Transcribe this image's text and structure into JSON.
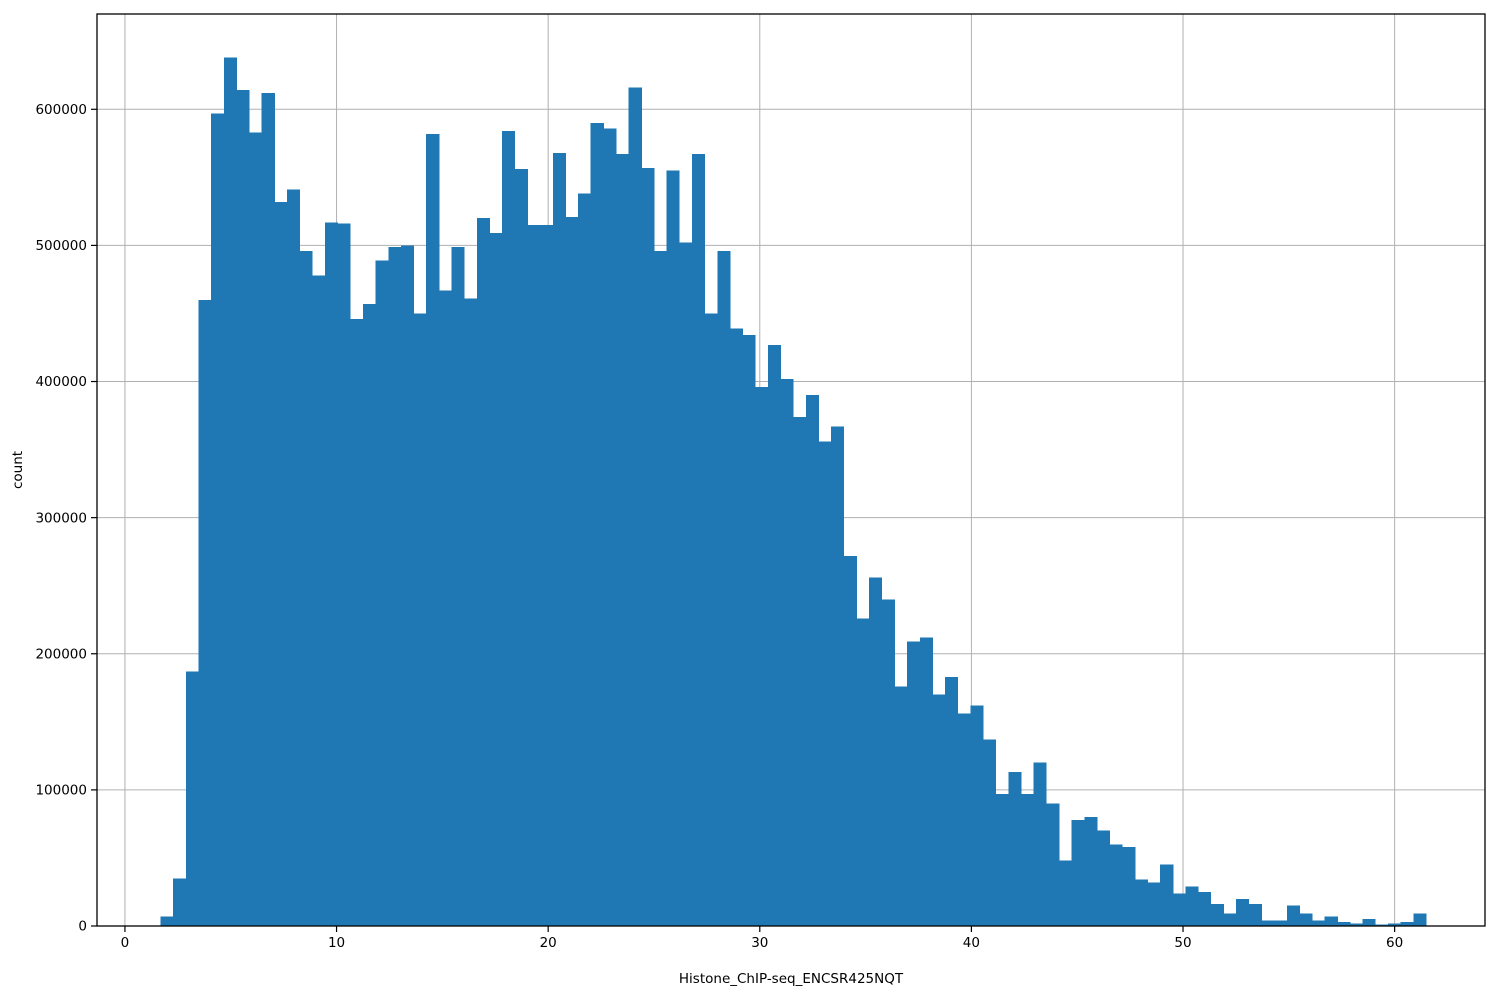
{
  "figure": {
    "background": "#ffffff"
  },
  "chart_data": {
    "type": "bar",
    "subtype": "histogram",
    "title": "",
    "xlabel": "Histone_ChIP-seq_ENCSR425NQT",
    "ylabel": "count",
    "bar_color": "#1f77b4",
    "grid_color": "#b0b0b0",
    "spine_color": "#000000",
    "grid": true,
    "legend_position": "none",
    "xlim": [
      -1.32,
      64.27
    ],
    "ylim": [
      0,
      670000
    ],
    "x_ticks": [
      0,
      10,
      20,
      30,
      40,
      50,
      60
    ],
    "x_tick_labels": [
      "0",
      "10",
      "20",
      "30",
      "40",
      "50",
      "60"
    ],
    "y_ticks": [
      0,
      100000,
      200000,
      300000,
      400000,
      500000,
      600000
    ],
    "y_tick_labels": [
      "0",
      "100000",
      "200000",
      "300000",
      "400000",
      "500000",
      "600000"
    ],
    "bin_start": 1.68,
    "bin_width": 0.598,
    "counts": [
      7000,
      35000,
      187000,
      460000,
      597000,
      638000,
      614000,
      583000,
      612000,
      532000,
      541000,
      496000,
      478000,
      517000,
      516000,
      446000,
      457000,
      489000,
      499000,
      500000,
      450000,
      582000,
      467000,
      499000,
      461000,
      520000,
      509000,
      584000,
      556000,
      515000,
      515000,
      568000,
      521000,
      538000,
      590000,
      586000,
      567000,
      616000,
      557000,
      496000,
      555000,
      502000,
      567000,
      450000,
      496000,
      439000,
      434000,
      396000,
      427000,
      402000,
      374000,
      390000,
      356000,
      367000,
      272000,
      226000,
      256000,
      240000,
      176000,
      209000,
      212000,
      170000,
      183000,
      156000,
      162000,
      137000,
      97000,
      113000,
      97000,
      120000,
      90000,
      48000,
      78000,
      80000,
      70000,
      60000,
      58000,
      34000,
      32000,
      45000,
      24000,
      29000,
      25000,
      16000,
      9000,
      20000,
      16000,
      4000,
      4000,
      15000,
      9000,
      4000,
      7000,
      3000,
      2000,
      5000,
      1000,
      2000,
      3000,
      9000
    ]
  }
}
